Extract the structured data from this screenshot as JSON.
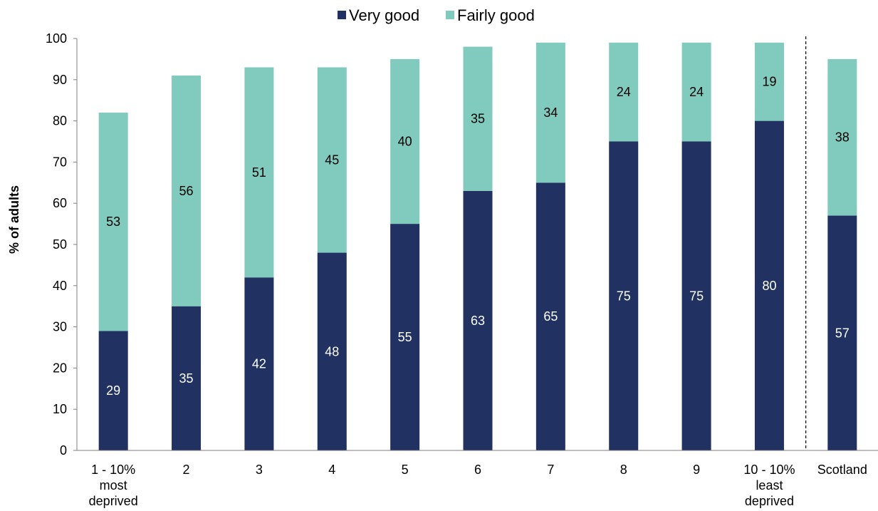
{
  "chart_data": {
    "type": "bar",
    "stacked": true,
    "categories": [
      [
        "1 - 10%",
        "most",
        "deprived"
      ],
      [
        "2"
      ],
      [
        "3"
      ],
      [
        "4"
      ],
      [
        "5"
      ],
      [
        "6"
      ],
      [
        "7"
      ],
      [
        "8"
      ],
      [
        "9"
      ],
      [
        "10 - 10%",
        "least",
        "deprived"
      ],
      [
        "Scotland"
      ]
    ],
    "series": [
      {
        "name": "Very good",
        "color": "#203162",
        "label_color": "#ffffff",
        "values": [
          29,
          35,
          42,
          48,
          55,
          63,
          65,
          75,
          75,
          80,
          57
        ]
      },
      {
        "name": "Fairly good",
        "color": "#80cbbd",
        "label_color": "#000000",
        "values": [
          53,
          56,
          51,
          45,
          40,
          35,
          34,
          24,
          24,
          19,
          38
        ]
      }
    ],
    "ylabel": "% of adults",
    "ylim": [
      0,
      100
    ],
    "yticks": [
      0,
      10,
      20,
      30,
      40,
      50,
      60,
      70,
      80,
      90,
      100
    ],
    "legend_position": "top-center",
    "grid": false,
    "separator_after_category": 9
  }
}
